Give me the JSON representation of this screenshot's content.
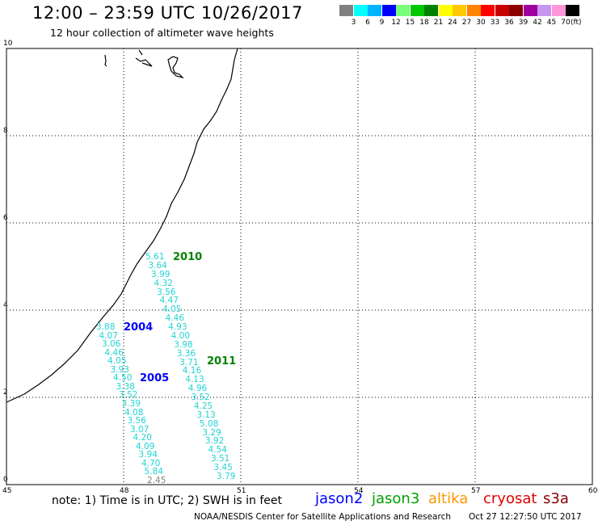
{
  "header": {
    "title": "12:00 – 23:59 UTC 10/26/2017",
    "subtitle": "12 hour collection of altimeter wave heights"
  },
  "legend": {
    "labels": [
      "3",
      "6",
      "9",
      "12",
      "15",
      "18",
      "21",
      "24",
      "27",
      "30",
      "33",
      "36",
      "39",
      "42",
      "45",
      "70"
    ],
    "unit": "(ft)",
    "colors": [
      "#808080",
      "#00ffff",
      "#00b4ff",
      "#0000ff",
      "#78ff78",
      "#00c800",
      "#008200",
      "#ffff00",
      "#ffc800",
      "#ff8200",
      "#ff0000",
      "#c80000",
      "#8c0000",
      "#a000a0",
      "#c896f0",
      "#ff96dc",
      "#000000"
    ]
  },
  "axes": {
    "x_ticks": [
      "45",
      "48",
      "51",
      "54",
      "57",
      "60"
    ],
    "y_ticks": [
      "0",
      "2",
      "4",
      "6",
      "8",
      "10"
    ]
  },
  "passes": [
    {
      "label": "2004",
      "color": "#0000ff"
    },
    {
      "label": "2005",
      "color": "#0000ff"
    },
    {
      "label": "2010",
      "color": "#008200"
    },
    {
      "label": "2011",
      "color": "#008200"
    }
  ],
  "tracks": {
    "track_2004_2005": [
      "3.88",
      "4.07",
      "3.06",
      "4.46",
      "4.05",
      "3.93",
      "4.50",
      "3.38",
      "3.52",
      "3.39",
      "4.08",
      "3.56",
      "3.07",
      "4.20",
      "4.09",
      "3.94",
      "4.70",
      "5.84",
      "2.45"
    ],
    "track_2010_2011": [
      "5.61",
      "3.64",
      "3.99",
      "4.32",
      "3.56",
      "4.47",
      "4.05",
      "4.46",
      "4.93",
      "4.00",
      "3.98",
      "3.36",
      "3.71",
      "4.16",
      "4.13",
      "4.96",
      "3.52",
      "4.25",
      "3.13",
      "5.08",
      "3.29",
      "3.92",
      "4.54",
      "3.51",
      "3.45",
      "3.79"
    ]
  },
  "footer": {
    "note": "note: 1) Time is in UTC; 2) SWH is in feet",
    "satellites": [
      {
        "name": "jason2",
        "color": "#0000ff"
      },
      {
        "name": "jason3",
        "color": "#00a000"
      },
      {
        "name": "altika",
        "color": "#ff9600"
      },
      {
        "name": "cryosat",
        "color": "#e00000"
      },
      {
        "name": "s3a",
        "color": "#8c0000"
      }
    ],
    "credit": "NOAA/NESDIS Center for Satellite Applications and Research",
    "timestamp": "Oct 27 12:27:50 UTC 2017"
  }
}
